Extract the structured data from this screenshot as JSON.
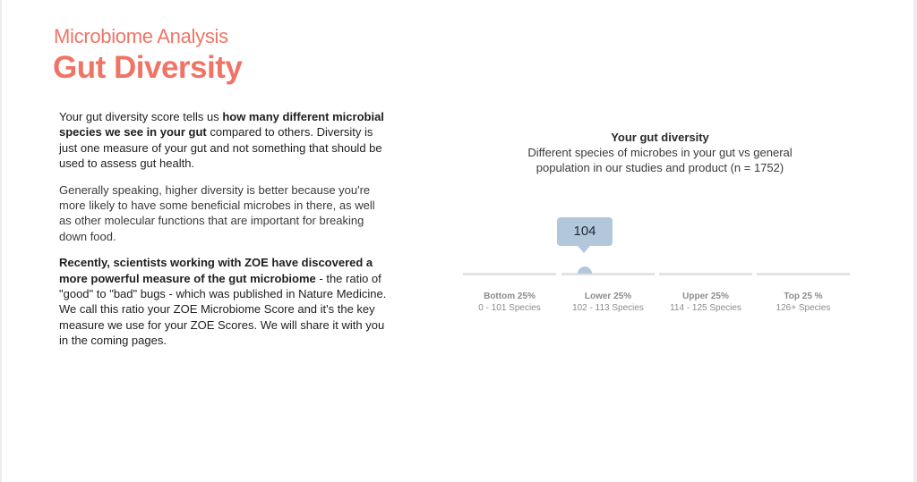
{
  "header": {
    "subtitle": "Microbiome Analysis",
    "title": "Gut Diversity"
  },
  "body": {
    "p1": [
      {
        "text": "Your gut diversity score tells us ",
        "bold": false
      },
      {
        "text": "how many different microbial species we see in your gut",
        "bold": true
      },
      {
        "text": " compared to others. Diversity is just one measure of your gut and not something that should be used to assess gut health.",
        "bold": false
      }
    ],
    "p2": "Generally speaking, higher diversity is better because you're more likely to have some beneficial microbes in there, as well as other molecular functions that are important for breaking down food.",
    "p3": [
      {
        "text": "Recently, scientists working with ZOE have discovered a more powerful measure of the gut microbiome",
        "bold": true
      },
      {
        "text": " - the ratio of \"good\" to \"bad\" bugs - which was published in Nature Medicine. We call this ratio your ZOE Microbiome Score and it's the key measure we use for your ZOE Scores. We will share it with you in the coming pages.",
        "bold": false
      }
    ]
  },
  "gauge": {
    "title": "Your gut diversity",
    "description": "Different species of microbes in your gut vs general population in our studies and product (n = 1752)",
    "value": "104",
    "marker_color": "#b3c7db",
    "segments": [
      {
        "name": "Bottom 25%",
        "range": "0 - 101 Species"
      },
      {
        "name": "Lower 25%",
        "range": "102 - 113 Species"
      },
      {
        "name": "Upper 25%",
        "range": "114 - 125 Species"
      },
      {
        "name": "Top 25 %",
        "range": "126+ Species"
      }
    ]
  },
  "colors": {
    "accent": "#f07466"
  }
}
